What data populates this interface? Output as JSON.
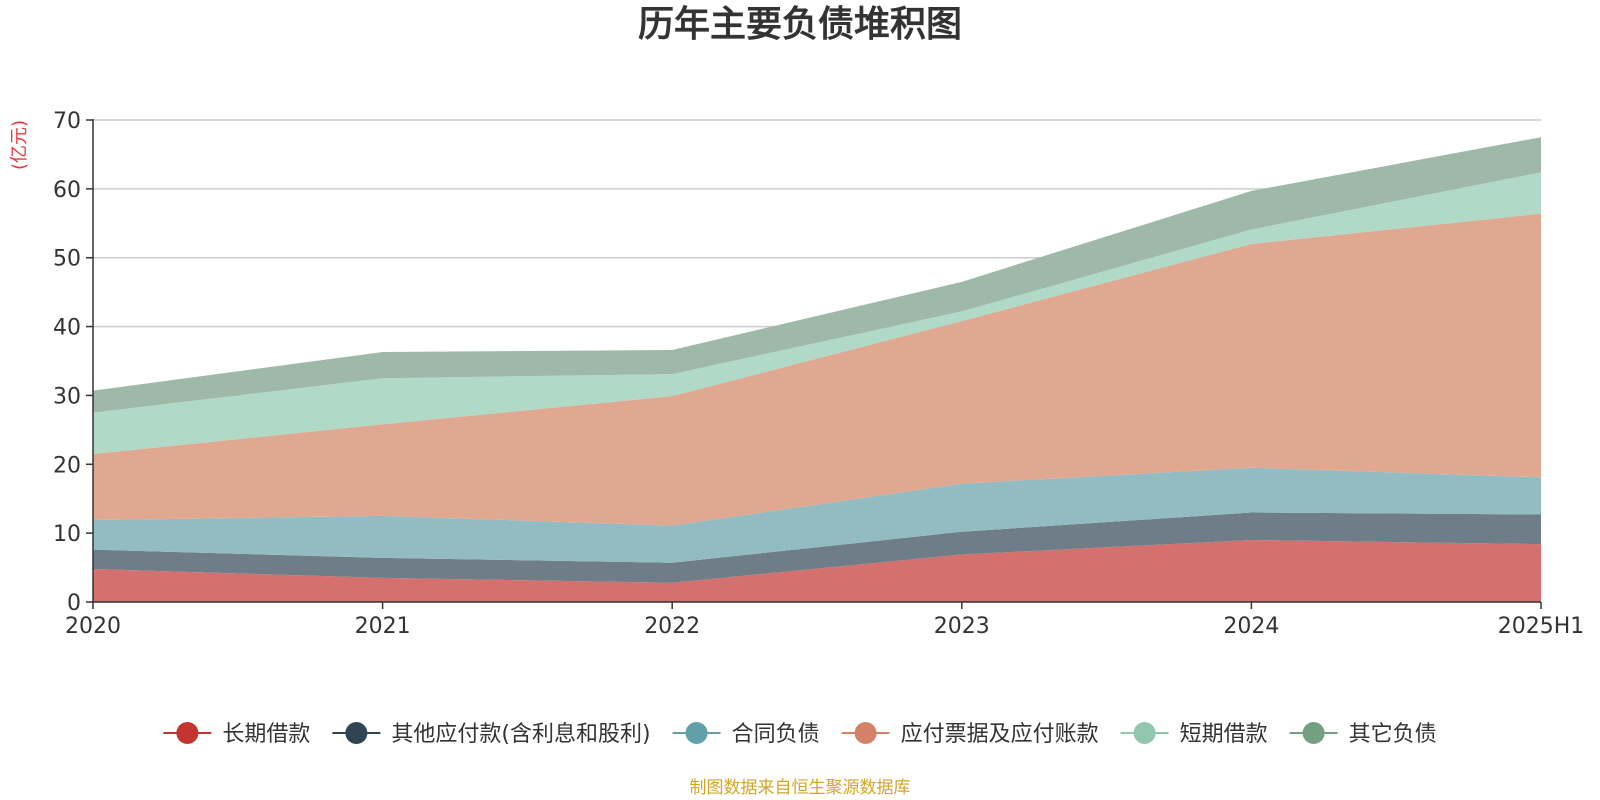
{
  "chart_data": {
    "type": "area",
    "stacked": true,
    "title": "历年主要负债堆积图",
    "unit": "(亿元)",
    "source": "制图数据来自恒生聚源数据库",
    "categories": [
      "2020",
      "2021",
      "2022",
      "2023",
      "2024",
      "2025H1"
    ],
    "ylim": [
      0,
      70
    ],
    "yticks": [
      0,
      10,
      20,
      30,
      40,
      50,
      60,
      70
    ],
    "grid": true,
    "legend_position": "bottom",
    "series": [
      {
        "name": "长期借款",
        "values": [
          4.8,
          3.5,
          2.8,
          6.9,
          9.0,
          8.4
        ],
        "color": "#c23531",
        "fill": "#d4706d"
      },
      {
        "name": "其他应付款(含利息和股利)",
        "values": [
          2.8,
          2.9,
          2.9,
          3.3,
          4.0,
          4.3
        ],
        "color": "#2f4554",
        "fill": "#6e7d87"
      },
      {
        "name": "合同负债",
        "values": [
          4.3,
          6.1,
          5.4,
          7.0,
          6.5,
          5.4
        ],
        "color": "#61a0a8",
        "fill": "#92bcc2"
      },
      {
        "name": "应付票据及应付账款",
        "values": [
          9.6,
          13.3,
          18.8,
          23.6,
          32.5,
          38.3
        ],
        "color": "#d48265",
        "fill": "#e0a791"
      },
      {
        "name": "短期借款",
        "values": [
          6.0,
          6.7,
          3.2,
          1.4,
          2.1,
          6.0
        ],
        "color": "#91c7ae",
        "fill": "#b0d9c7"
      },
      {
        "name": "其它负债",
        "values": [
          3.2,
          3.8,
          3.5,
          4.3,
          5.6,
          5.1
        ],
        "color": "#749f83",
        "fill": "#9eb9a7"
      }
    ]
  }
}
